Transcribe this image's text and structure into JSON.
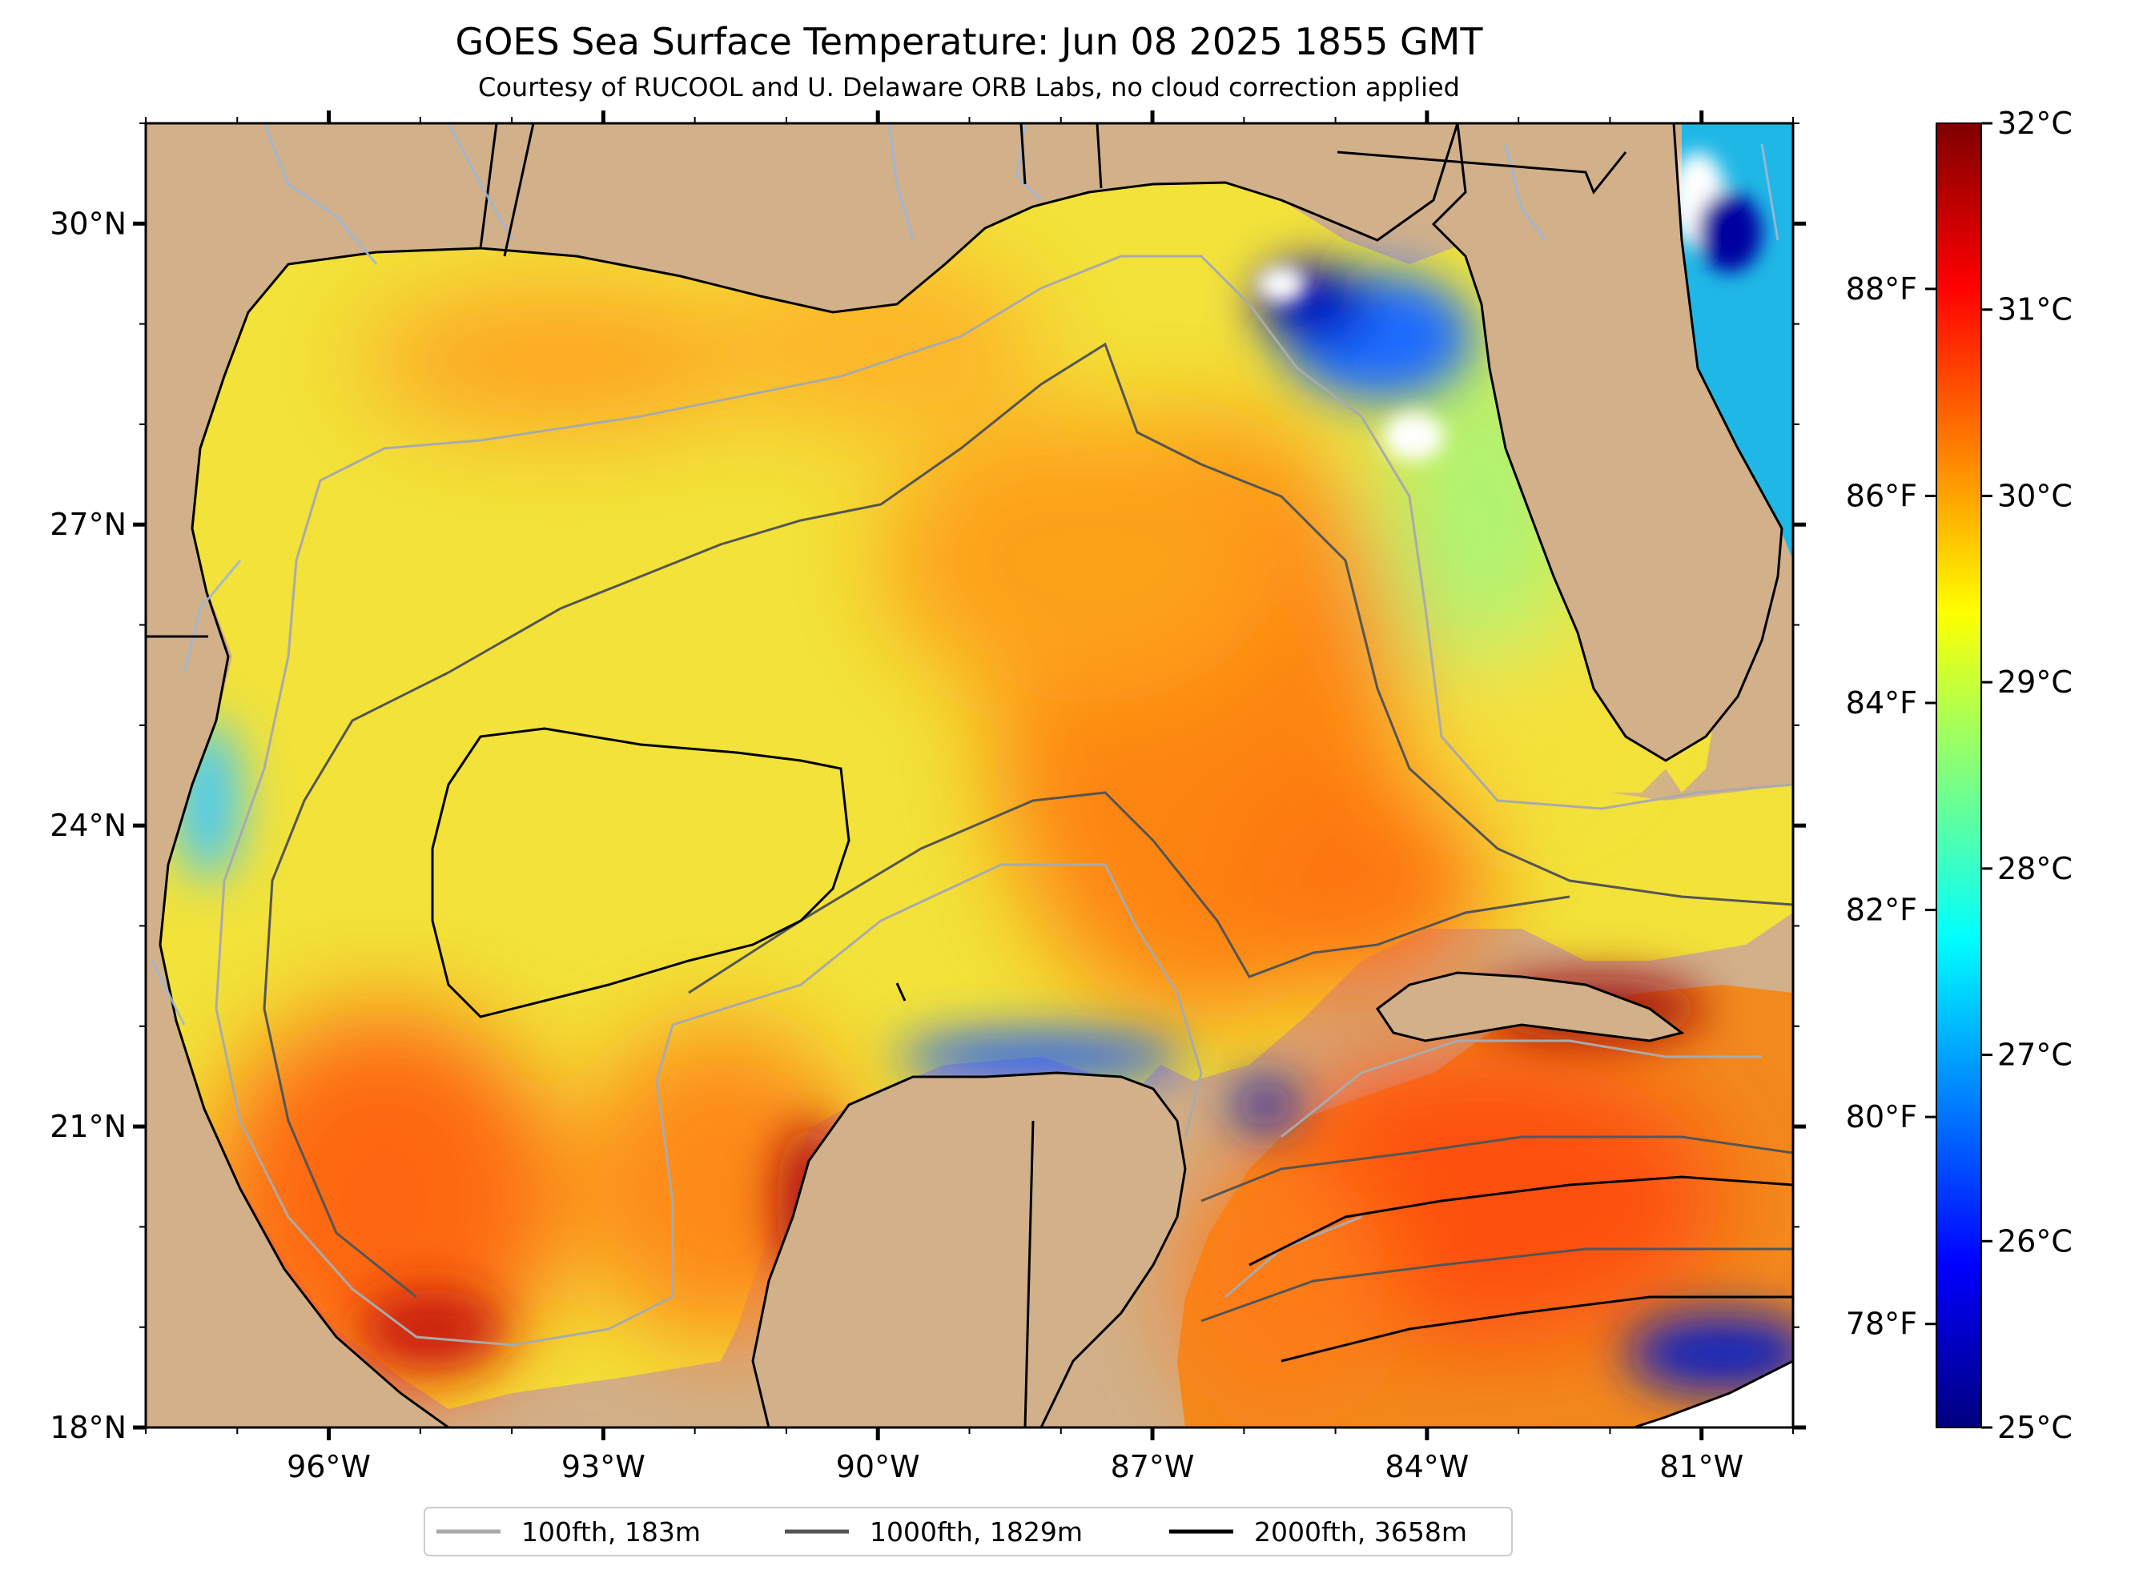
{
  "header": {
    "title": "GOES Sea Surface Temperature: Jun 08 2025 1855 GMT",
    "subtitle": "Courtesy of RUCOOL and U. Delaware ORB Labs, no cloud correction applied"
  },
  "map": {
    "lon_range": [
      -98,
      -80
    ],
    "lat_range": [
      18,
      31
    ],
    "lon_ticks": [
      {
        "value": -96,
        "label": "96°W"
      },
      {
        "value": -93,
        "label": "93°W"
      },
      {
        "value": -90,
        "label": "90°W"
      },
      {
        "value": -87,
        "label": "87°W"
      },
      {
        "value": -84,
        "label": "84°W"
      },
      {
        "value": -81,
        "label": "81°W"
      }
    ],
    "lat_ticks": [
      {
        "value": 30,
        "label": "30°N"
      },
      {
        "value": 27,
        "label": "27°N"
      },
      {
        "value": 24,
        "label": "24°N"
      },
      {
        "value": 21,
        "label": "21°N"
      },
      {
        "value": 18,
        "label": "18°N"
      }
    ],
    "colors": {
      "land": "#d1b08a",
      "coast": "#000000",
      "river": "#9fb7d6",
      "cloud": "#ffffff"
    }
  },
  "colorbar": {
    "range_c": [
      25,
      32
    ],
    "celsius_ticks": [
      {
        "value": 25,
        "label": "25°C"
      },
      {
        "value": 26,
        "label": "26°C"
      },
      {
        "value": 27,
        "label": "27°C"
      },
      {
        "value": 28,
        "label": "28°C"
      },
      {
        "value": 29,
        "label": "29°C"
      },
      {
        "value": 30,
        "label": "30°C"
      },
      {
        "value": 31,
        "label": "31°C"
      },
      {
        "value": 32,
        "label": "32°C"
      }
    ],
    "fahrenheit_ticks": [
      {
        "value": 78,
        "label": "78°F"
      },
      {
        "value": 80,
        "label": "80°F"
      },
      {
        "value": 82,
        "label": "82°F"
      },
      {
        "value": 84,
        "label": "84°F"
      },
      {
        "value": 86,
        "label": "86°F"
      },
      {
        "value": 88,
        "label": "88°F"
      }
    ],
    "colormap": "jet",
    "colormap_stops": [
      "#00007f",
      "#0000ff",
      "#007fff",
      "#00ffff",
      "#7fff7f",
      "#ffff00",
      "#ff7f00",
      "#ff0000",
      "#7f0000"
    ]
  },
  "legend": {
    "items": [
      {
        "label": "100fth, 183m",
        "color": "#aaaaaa"
      },
      {
        "label": "1000fth, 1829m",
        "color": "#555555"
      },
      {
        "label": "2000fth, 3658m",
        "color": "#000000"
      }
    ]
  }
}
